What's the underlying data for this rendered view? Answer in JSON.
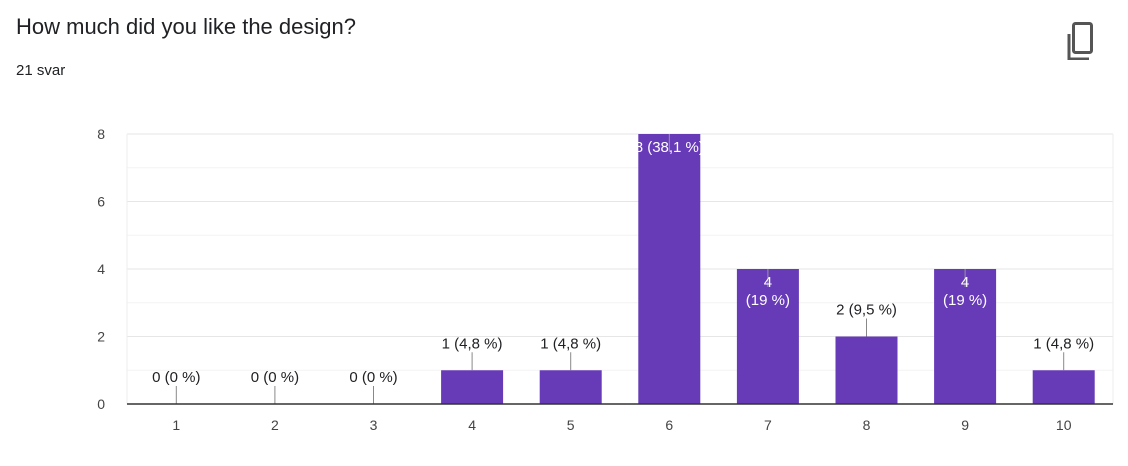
{
  "question": {
    "title": "How much did you like the design?",
    "response_count": "21 svar"
  },
  "icons": {
    "copy": "copy-icon"
  },
  "colors": {
    "bar": "#673ab7",
    "grid": "#e8e8e8",
    "axis": "#333333"
  },
  "chart_data": {
    "type": "bar",
    "categories": [
      "1",
      "2",
      "3",
      "4",
      "5",
      "6",
      "7",
      "8",
      "9",
      "10"
    ],
    "values": [
      0,
      0,
      0,
      1,
      1,
      8,
      4,
      2,
      4,
      1
    ],
    "data_labels": [
      [
        "0 (0 %)"
      ],
      [
        "0 (0 %)"
      ],
      [
        "0 (0 %)"
      ],
      [
        "1 (4,8 %)"
      ],
      [
        "1 (4,8 %)"
      ],
      [
        "8 (38,1 %)"
      ],
      [
        "4",
        "(19 %)"
      ],
      [
        "2 (9,5 %)"
      ],
      [
        "4",
        "(19 %)"
      ],
      [
        "1 (4,8 %)"
      ]
    ],
    "label_inside": [
      false,
      false,
      false,
      false,
      false,
      true,
      true,
      false,
      true,
      false
    ],
    "y_ticks": [
      "0",
      "2",
      "4",
      "6",
      "8"
    ],
    "ylim": [
      0,
      8
    ],
    "grid": true
  }
}
